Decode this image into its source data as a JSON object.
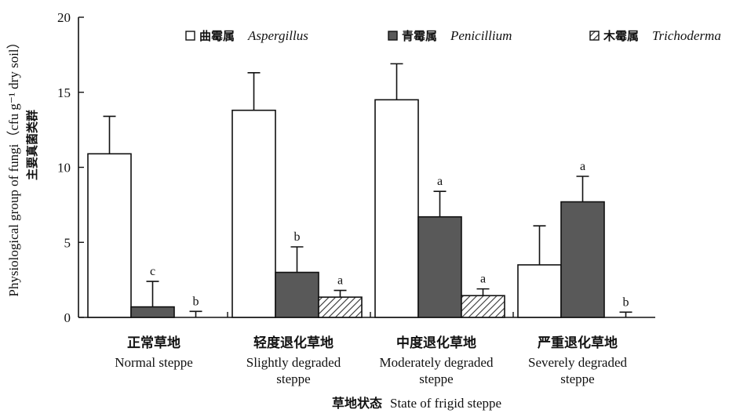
{
  "chart_data": {
    "type": "bar",
    "categories": [
      {
        "zh": "正常草地",
        "en": [
          "Normal steppe"
        ]
      },
      {
        "zh": "轻度退化草地",
        "en": [
          "Slightly degraded",
          "steppe"
        ]
      },
      {
        "zh": "中度退化草地",
        "en": [
          "Moderately degraded",
          "steppe"
        ]
      },
      {
        "zh": "严重退化草地",
        "en": [
          "Severely degraded",
          "steppe"
        ]
      }
    ],
    "series": [
      {
        "name_zh": "曲霉属",
        "name_en": "Aspergillus",
        "fill": "#ffffff",
        "values": [
          10.9,
          13.8,
          14.5,
          3.5
        ],
        "errors": [
          2.5,
          2.5,
          2.4,
          2.6
        ],
        "labels": [
          "",
          "",
          "",
          ""
        ]
      },
      {
        "name_zh": "青霉属",
        "name_en": "Penicillium",
        "fill": "#595959",
        "values": [
          0.7,
          3.0,
          6.7,
          7.7
        ],
        "errors": [
          1.7,
          1.7,
          1.7,
          1.7
        ],
        "labels": [
          "c",
          "b",
          "a",
          "a"
        ]
      },
      {
        "name_zh": "木霉属",
        "name_en": "Trichoderma",
        "fill": "hatch",
        "values": [
          0.0,
          1.35,
          1.45,
          0.0
        ],
        "errors": [
          0.4,
          0.45,
          0.45,
          0.35
        ],
        "labels": [
          "b",
          "a",
          "a",
          "b"
        ]
      }
    ],
    "ylim": [
      0,
      20
    ],
    "yticks": [
      0,
      5,
      10,
      15,
      20
    ],
    "ylabel_en": "Physiological group of fungi（cfu g⁻¹ dry soil）",
    "ylabel_zh": "主要真菌类群",
    "xlabel_zh": "草地状态",
    "xlabel_en": "State of frigid steppe",
    "legend_position": "top-right",
    "grid": false
  }
}
